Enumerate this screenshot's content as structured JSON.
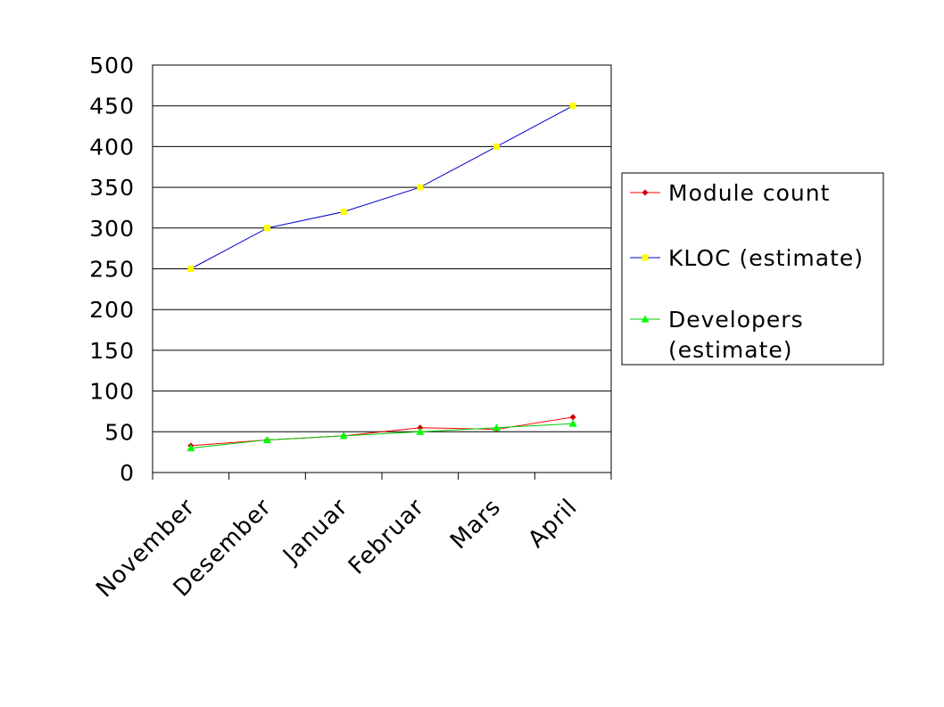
{
  "chart_data": {
    "type": "line",
    "categories": [
      "November",
      "Desember",
      "Januar",
      "Februar",
      "Mars",
      "April"
    ],
    "ylim": [
      0,
      500
    ],
    "yticks": [
      "0",
      "50",
      "100",
      "150",
      "200",
      "250",
      "300",
      "350",
      "400",
      "450",
      "500"
    ],
    "grid": true,
    "legend_position": "right",
    "series": [
      {
        "name": "Module count",
        "values": [
          33,
          40,
          45,
          55,
          53,
          68
        ],
        "color": "#ff0000",
        "marker": "diamond",
        "marker_color": "#cc0000"
      },
      {
        "name": "KLOC (estimate)",
        "values": [
          250,
          300,
          320,
          350,
          400,
          450
        ],
        "color": "#0000cc",
        "marker": "square",
        "marker_color": "#ffff00"
      },
      {
        "name": "Developers (estimate)",
        "values": [
          30,
          40,
          45,
          50,
          55,
          60
        ],
        "color": "#00cc00",
        "marker": "triangle",
        "marker_color": "#00ff00"
      }
    ]
  }
}
